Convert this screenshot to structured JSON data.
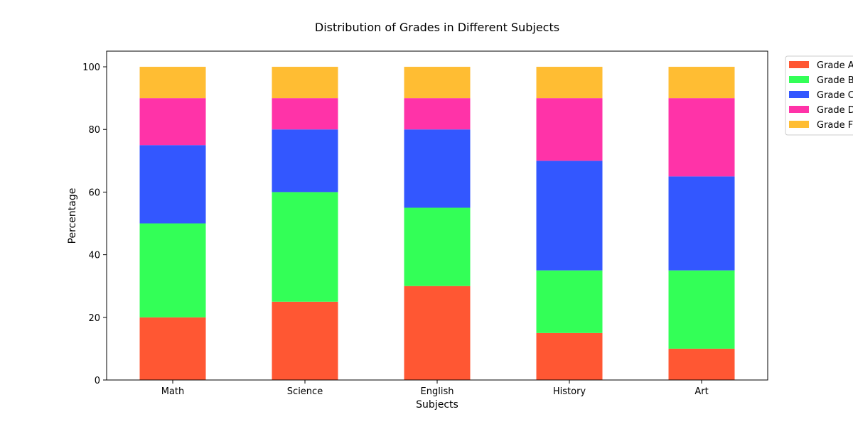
{
  "chart_data": {
    "type": "bar",
    "stacked": true,
    "title": "Distribution of Grades in Different Subjects",
    "xlabel": "Subjects",
    "ylabel": "Percentage",
    "categories": [
      "Math",
      "Science",
      "English",
      "History",
      "Art"
    ],
    "ylim": [
      0,
      105
    ],
    "yticks": [
      0,
      20,
      40,
      60,
      80,
      100
    ],
    "grid": false,
    "legend_position": "outside-top-right",
    "series": [
      {
        "name": "Grade A",
        "color": "#ff5733",
        "values": [
          20,
          25,
          30,
          15,
          10
        ]
      },
      {
        "name": "Grade B",
        "color": "#33ff57",
        "values": [
          30,
          35,
          25,
          20,
          25
        ]
      },
      {
        "name": "Grade C",
        "color": "#3357ff",
        "values": [
          25,
          20,
          25,
          35,
          30
        ]
      },
      {
        "name": "Grade D",
        "color": "#ff33a8",
        "values": [
          15,
          10,
          10,
          20,
          25
        ]
      },
      {
        "name": "Grade F",
        "color": "#ffbd33",
        "values": [
          10,
          10,
          10,
          10,
          10
        ]
      }
    ]
  }
}
